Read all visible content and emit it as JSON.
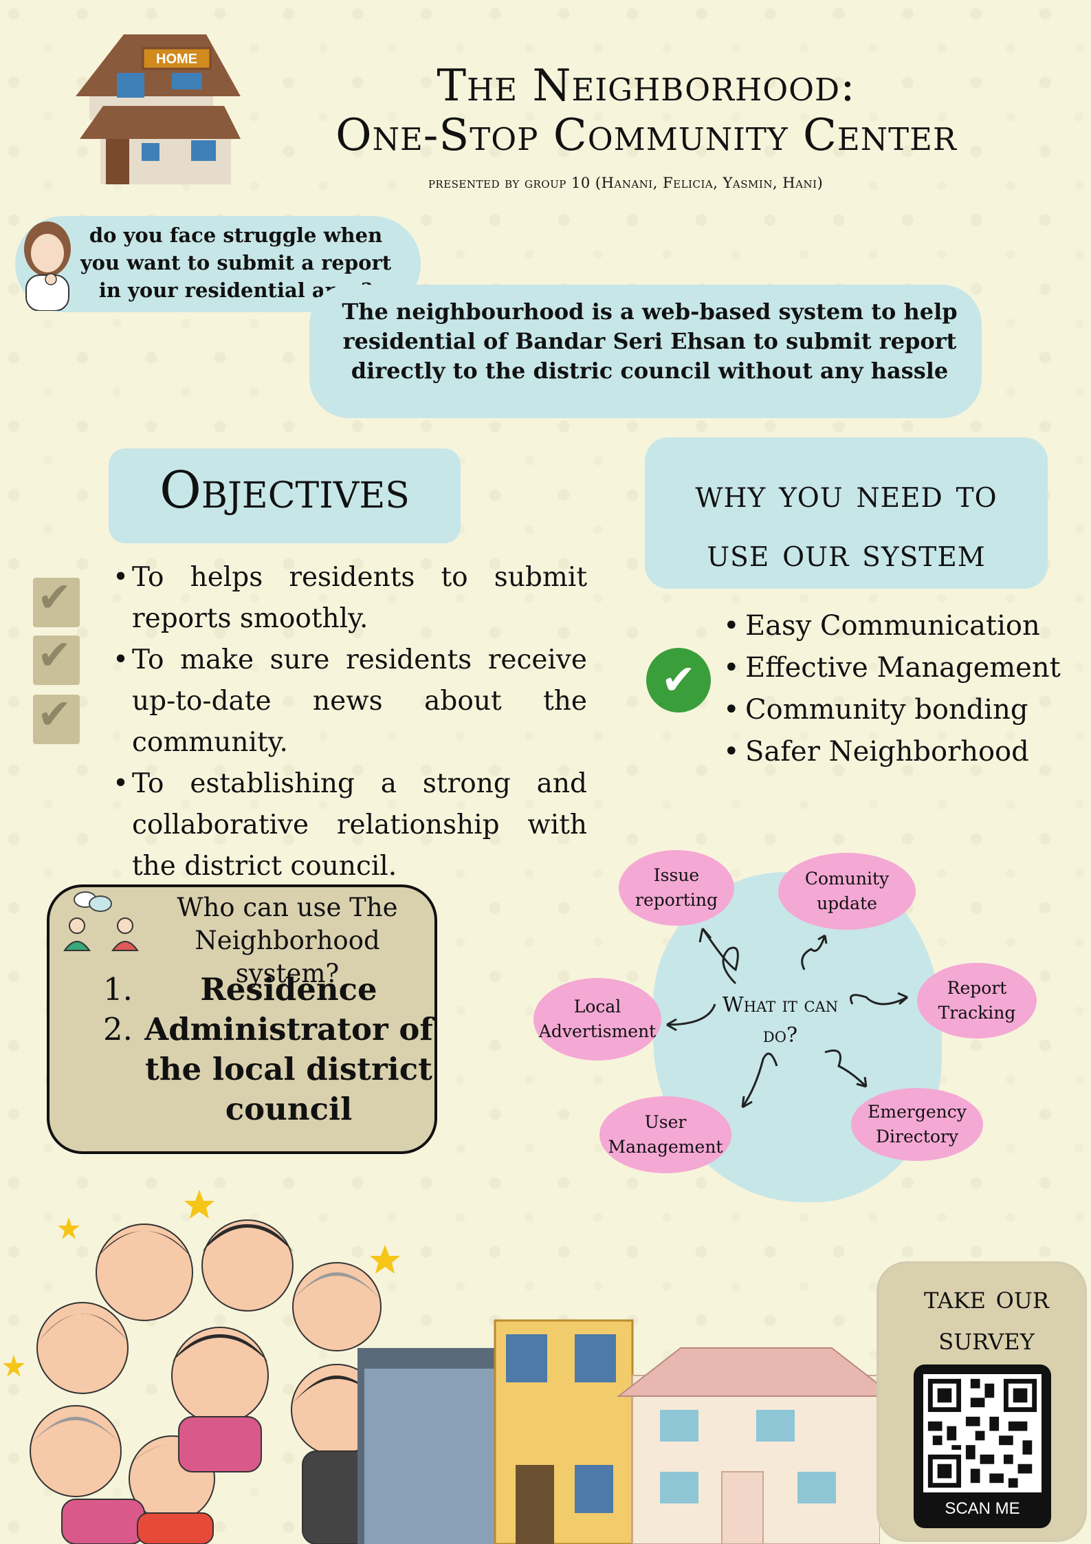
{
  "header": {
    "title_line1": "The Neighborhood:",
    "title_line2": "One-Stop Community Center",
    "presented_by": "presented by group 10 (Hanani, Felicia, Yasmin, Hani)",
    "logo_sign": "HOME"
  },
  "question": "do you face struggle when you want to submit a report in your residential area?",
  "intro": "The neighbourhood is a web-based system to help residential of Bandar Seri Ehsan to submit report directly to the distric council without any hassle",
  "objectives": {
    "title": "Objectives",
    "items": [
      "To helps residents to submit reports smoothly.",
      "To make sure residents receive up-to-date news about the community.",
      "To establishing a strong and collaborative relationship with the district council."
    ]
  },
  "why": {
    "title_line1": "why you need to",
    "title_line2": "use our system",
    "items": [
      "Easy Communication",
      "Effective Management",
      "Community bonding",
      "Safer Neighborhood"
    ]
  },
  "who": {
    "title": "Who can use The Neighborhood system?",
    "items": [
      {
        "num": "1.",
        "text": "Residence"
      },
      {
        "num": "2.",
        "text": "Administrator of the local district council"
      }
    ]
  },
  "diagram": {
    "center": "What it can do?",
    "nodes": {
      "issue": "Issue reporting",
      "update": "Comunity update",
      "tracking": "Report Tracking",
      "advert": "Local Advertisment",
      "user": "User Management",
      "emergency": "Emergency Directory"
    }
  },
  "survey": {
    "title": "take our survey",
    "scan_label": "SCAN ME"
  },
  "colors": {
    "background": "#f7f4dc",
    "bubble": "#c7e6e8",
    "panel": "#d9d0ae",
    "pill": "#f4a8d4",
    "check_green": "#3a9e3a"
  }
}
